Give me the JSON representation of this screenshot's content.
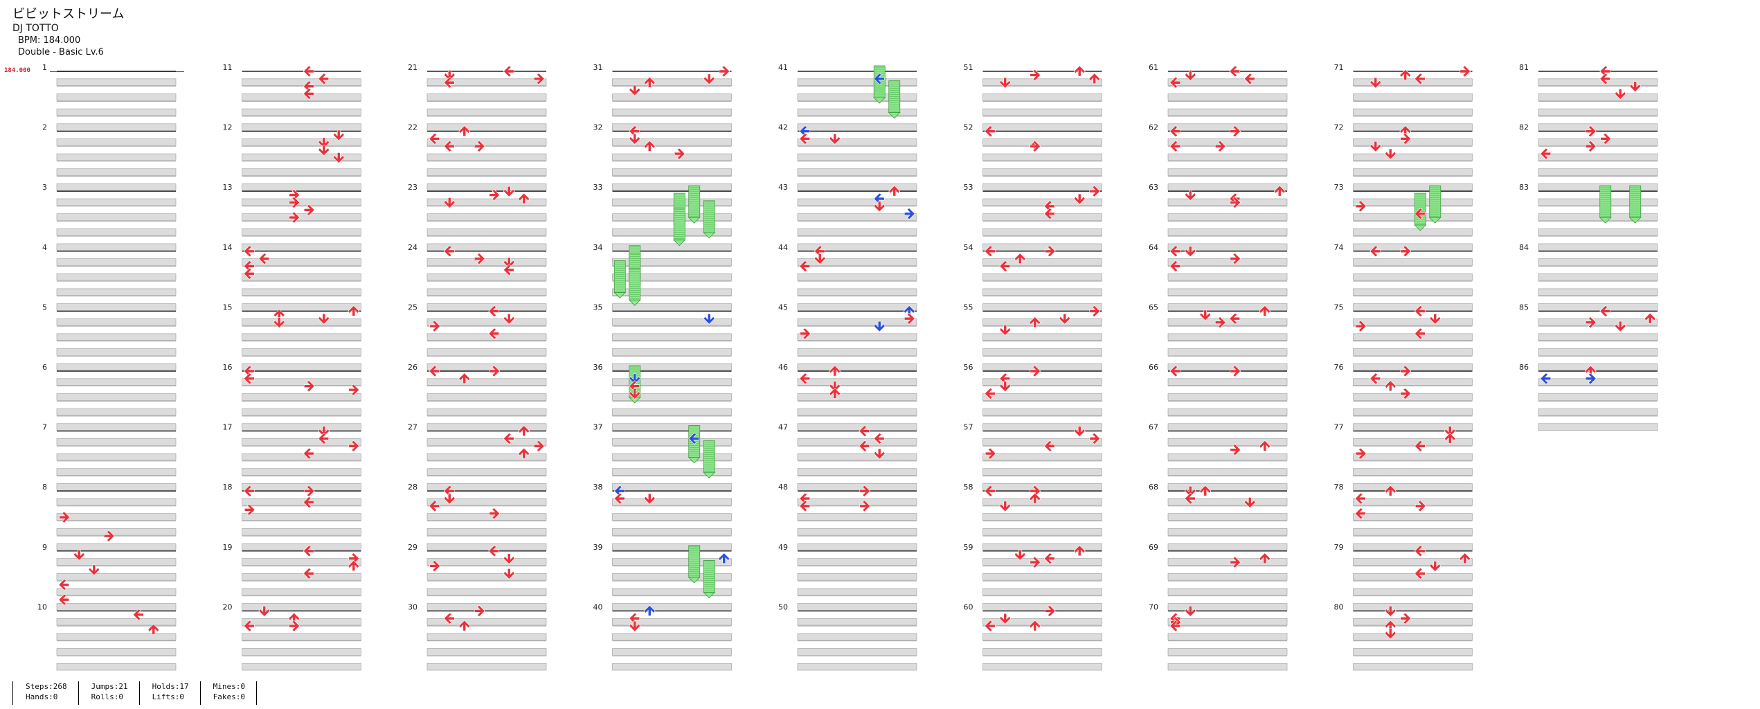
{
  "song": {
    "title": "ビビットストリーム",
    "artist": "DJ TOTTO",
    "bpm_text": "BPM: 184.000",
    "difficulty_text": "Double - Basic  Lv.6"
  },
  "bpm_marker": {
    "value": "184.000"
  },
  "measures": {
    "total": 86,
    "per_column": 10,
    "labels": [
      "1",
      "2",
      "3",
      "4",
      "5",
      "6",
      "7",
      "8",
      "9",
      "10",
      "11",
      "12",
      "13",
      "14",
      "15",
      "16",
      "17",
      "18",
      "19",
      "20",
      "21",
      "22",
      "23",
      "24",
      "25",
      "26",
      "27",
      "28",
      "29",
      "30",
      "31",
      "32",
      "33",
      "34",
      "35",
      "36",
      "37",
      "38",
      "39",
      "40",
      "41",
      "42",
      "43",
      "44",
      "45",
      "46",
      "47",
      "48",
      "49",
      "50",
      "51",
      "52",
      "53",
      "54",
      "55",
      "56",
      "57",
      "58",
      "59",
      "60",
      "61",
      "62",
      "63",
      "64",
      "65",
      "66",
      "67",
      "68",
      "69",
      "70",
      "71",
      "72",
      "73",
      "74",
      "75",
      "76",
      "77",
      "78",
      "79",
      "80",
      "81",
      "82",
      "83",
      "84",
      "85",
      "86"
    ]
  },
  "lanes": [
    "P1-left",
    "P1-down",
    "P1-up",
    "P1-right",
    "P2-left",
    "P2-down",
    "P2-up",
    "P2-right"
  ],
  "notes": [
    [
      8,
      7,
      "right",
      "red"
    ],
    [
      8,
      12,
      "right",
      "red"
    ],
    [
      9,
      1,
      "down",
      "red"
    ],
    [
      9,
      5,
      "down",
      "red"
    ],
    [
      9,
      9,
      "left",
      "red"
    ],
    [
      9,
      13,
      "left",
      "red"
    ],
    [
      10,
      1,
      "left",
      "red"
    ],
    [
      10,
      5,
      "up",
      "red"
    ],
    [
      11,
      0,
      "left",
      "red"
    ],
    [
      11,
      2,
      "left",
      "red"
    ],
    [
      11,
      4,
      "left",
      "red"
    ],
    [
      11,
      6,
      "left",
      "red"
    ],
    [
      12,
      1,
      "down",
      "red"
    ],
    [
      12,
      3,
      "down",
      "red"
    ],
    [
      12,
      5,
      "down",
      "red"
    ],
    [
      12,
      7,
      "down",
      "red"
    ],
    [
      13,
      1,
      "right",
      "red"
    ],
    [
      13,
      3,
      "right",
      "red"
    ],
    [
      13,
      5,
      "right",
      "red"
    ],
    [
      13,
      7,
      "right",
      "red"
    ],
    [
      14,
      0,
      "left",
      "red"
    ],
    [
      14,
      2,
      "left",
      "red"
    ],
    [
      14,
      4,
      "left",
      "red"
    ],
    [
      14,
      6,
      "left",
      "red"
    ],
    [
      15,
      0,
      "up",
      "red"
    ],
    [
      15,
      1,
      "up",
      "red"
    ],
    [
      15,
      2,
      "down",
      "red"
    ],
    [
      15,
      3,
      "down",
      "red"
    ],
    [
      16,
      0,
      "left",
      "red"
    ],
    [
      16,
      2,
      "left",
      "red"
    ],
    [
      16,
      4,
      "right",
      "red"
    ],
    [
      16,
      5,
      "right",
      "red"
    ],
    [
      17,
      0,
      "down",
      "red"
    ],
    [
      17,
      2,
      "left",
      "red"
    ],
    [
      17,
      4,
      "right",
      "red"
    ],
    [
      17,
      6,
      "left",
      "red"
    ],
    [
      18,
      0,
      "right",
      "red"
    ],
    [
      18,
      0,
      "left",
      "red"
    ],
    [
      18,
      3,
      "left",
      "red"
    ],
    [
      18,
      5,
      "right",
      "red"
    ],
    [
      19,
      0,
      "left",
      "red"
    ],
    [
      19,
      2,
      "right",
      "red"
    ],
    [
      19,
      4,
      "up",
      "red"
    ],
    [
      19,
      6,
      "left",
      "red"
    ],
    [
      20,
      0,
      "down",
      "red"
    ],
    [
      20,
      2,
      "up",
      "red"
    ],
    [
      20,
      4,
      "left",
      "red"
    ],
    [
      20,
      4,
      "right",
      "red"
    ],
    [
      21,
      0,
      "left",
      "red"
    ],
    [
      21,
      1,
      "down",
      "red"
    ],
    [
      21,
      2,
      "right",
      "red"
    ],
    [
      21,
      3,
      "left",
      "red"
    ],
    [
      22,
      0,
      "up",
      "red"
    ],
    [
      22,
      2,
      "left",
      "red"
    ],
    [
      22,
      4,
      "left",
      "red"
    ],
    [
      22,
      4,
      "right",
      "red"
    ],
    [
      23,
      0,
      "down",
      "red"
    ],
    [
      23,
      1,
      "right",
      "red"
    ],
    [
      23,
      2,
      "up",
      "red"
    ],
    [
      23,
      3,
      "down",
      "red"
    ],
    [
      24,
      0,
      "left",
      "red"
    ],
    [
      24,
      2,
      "right",
      "red"
    ],
    [
      24,
      3,
      "down",
      "red"
    ],
    [
      24,
      5,
      "left",
      "red"
    ],
    [
      25,
      0,
      "left",
      "red"
    ],
    [
      25,
      2,
      "down",
      "red"
    ],
    [
      25,
      4,
      "right",
      "red"
    ],
    [
      25,
      6,
      "left",
      "red"
    ],
    [
      26,
      0,
      "left",
      "red"
    ],
    [
      26,
      0,
      "right",
      "red"
    ],
    [
      26,
      2,
      "up",
      "red"
    ],
    [
      27,
      0,
      "up",
      "red"
    ],
    [
      27,
      2,
      "left",
      "red"
    ],
    [
      27,
      4,
      "right",
      "red"
    ],
    [
      27,
      6,
      "up",
      "red"
    ],
    [
      28,
      0,
      "left",
      "red"
    ],
    [
      28,
      2,
      "down",
      "red"
    ],
    [
      28,
      4,
      "left",
      "red"
    ],
    [
      28,
      6,
      "right",
      "red"
    ],
    [
      29,
      0,
      "left",
      "red"
    ],
    [
      29,
      2,
      "down",
      "red"
    ],
    [
      29,
      4,
      "right",
      "red"
    ],
    [
      29,
      6,
      "down",
      "red"
    ],
    [
      30,
      0,
      "right",
      "red"
    ],
    [
      30,
      2,
      "left",
      "red"
    ],
    [
      30,
      4,
      "up",
      "red"
    ],
    [
      31,
      0,
      "right",
      "red"
    ],
    [
      31,
      2,
      "down",
      "red"
    ],
    [
      31,
      3,
      "up",
      "red"
    ],
    [
      31,
      5,
      "down",
      "red"
    ],
    [
      32,
      0,
      "left",
      "red"
    ],
    [
      32,
      2,
      "down",
      "red"
    ],
    [
      32,
      4,
      "up",
      "red"
    ],
    [
      32,
      6,
      "right",
      "red"
    ],
    [
      33,
      0,
      "down",
      "green"
    ],
    [
      33,
      2,
      "left",
      "green"
    ],
    [
      33,
      4,
      "down",
      "green"
    ],
    [
      33,
      6,
      "left",
      "green"
    ],
    [
      34,
      0,
      "down",
      "green"
    ],
    [
      34,
      2,
      "left",
      "green"
    ],
    [
      34,
      4,
      "left",
      "green"
    ],
    [
      34,
      6,
      "down",
      "green"
    ],
    [
      35,
      2,
      "down",
      "blue"
    ],
    [
      36,
      0,
      "down",
      "green"
    ],
    [
      36,
      2,
      "down",
      "blue"
    ],
    [
      36,
      4,
      "left",
      "red"
    ],
    [
      36,
      6,
      "down",
      "red"
    ],
    [
      37,
      0,
      "down",
      "green"
    ],
    [
      37,
      2,
      "left",
      "blue"
    ],
    [
      37,
      4,
      "up",
      "green"
    ],
    [
      38,
      0,
      "left",
      "blue"
    ],
    [
      38,
      2,
      "down",
      "red"
    ],
    [
      38,
      2,
      "left",
      "red"
    ],
    [
      39,
      0,
      "down",
      "green"
    ],
    [
      39,
      2,
      "up",
      "blue"
    ],
    [
      39,
      4,
      "up",
      "green"
    ],
    [
      40,
      0,
      "up",
      "blue"
    ],
    [
      40,
      2,
      "left",
      "red"
    ],
    [
      40,
      4,
      "down",
      "red"
    ],
    [
      41,
      0,
      "down",
      "green"
    ],
    [
      41,
      2,
      "left",
      "blue"
    ],
    [
      41,
      4,
      "up",
      "green"
    ],
    [
      42,
      0,
      "left",
      "blue"
    ],
    [
      42,
      2,
      "down",
      "red"
    ],
    [
      42,
      2,
      "left",
      "red"
    ],
    [
      43,
      0,
      "up",
      "red"
    ],
    [
      43,
      2,
      "left",
      "blue"
    ],
    [
      43,
      4,
      "down",
      "red"
    ],
    [
      43,
      6,
      "right",
      "blue"
    ],
    [
      44,
      0,
      "left",
      "red"
    ],
    [
      44,
      2,
      "down",
      "red"
    ],
    [
      44,
      4,
      "left",
      "red"
    ],
    [
      45,
      0,
      "up",
      "blue"
    ],
    [
      45,
      2,
      "right",
      "red"
    ],
    [
      45,
      4,
      "down",
      "blue"
    ],
    [
      45,
      6,
      "right",
      "red"
    ],
    [
      46,
      0,
      "up",
      "red"
    ],
    [
      46,
      2,
      "left",
      "red"
    ],
    [
      46,
      4,
      "down",
      "red"
    ],
    [
      46,
      6,
      "up",
      "red"
    ],
    [
      47,
      0,
      "left",
      "red"
    ],
    [
      47,
      2,
      "left",
      "red"
    ],
    [
      47,
      4,
      "left",
      "red"
    ],
    [
      47,
      6,
      "down",
      "red"
    ],
    [
      48,
      0,
      "right",
      "red"
    ],
    [
      48,
      2,
      "left",
      "red"
    ],
    [
      48,
      4,
      "left",
      "red"
    ],
    [
      48,
      4,
      "right",
      "red"
    ],
    [
      51,
      0,
      "up",
      "red"
    ],
    [
      51,
      1,
      "right",
      "red"
    ],
    [
      51,
      2,
      "up",
      "red"
    ],
    [
      51,
      3,
      "down",
      "red"
    ],
    [
      52,
      0,
      "left",
      "red"
    ],
    [
      52,
      4,
      "up",
      "red"
    ],
    [
      52,
      4,
      "right",
      "red"
    ],
    [
      53,
      0,
      "right",
      "red"
    ],
    [
      53,
      2,
      "down",
      "red"
    ],
    [
      53,
      4,
      "left",
      "red"
    ],
    [
      53,
      6,
      "left",
      "red"
    ],
    [
      54,
      0,
      "right",
      "red"
    ],
    [
      54,
      0,
      "left",
      "red"
    ],
    [
      54,
      2,
      "up",
      "red"
    ],
    [
      54,
      4,
      "left",
      "red"
    ],
    [
      55,
      0,
      "right",
      "red"
    ],
    [
      55,
      2,
      "down",
      "red"
    ],
    [
      55,
      3,
      "up",
      "red"
    ],
    [
      55,
      5,
      "down",
      "red"
    ],
    [
      56,
      0,
      "right",
      "red"
    ],
    [
      56,
      2,
      "left",
      "red"
    ],
    [
      56,
      4,
      "down",
      "red"
    ],
    [
      56,
      6,
      "left",
      "red"
    ],
    [
      57,
      0,
      "down",
      "red"
    ],
    [
      57,
      2,
      "right",
      "red"
    ],
    [
      57,
      4,
      "left",
      "red"
    ],
    [
      57,
      6,
      "right",
      "red"
    ],
    [
      58,
      0,
      "right",
      "red"
    ],
    [
      58,
      0,
      "left",
      "red"
    ],
    [
      58,
      2,
      "up",
      "red"
    ],
    [
      58,
      4,
      "down",
      "red"
    ],
    [
      59,
      0,
      "up",
      "red"
    ],
    [
      59,
      1,
      "down",
      "red"
    ],
    [
      59,
      2,
      "left",
      "red"
    ],
    [
      59,
      3,
      "right",
      "red"
    ],
    [
      60,
      0,
      "right",
      "red"
    ],
    [
      60,
      2,
      "down",
      "red"
    ],
    [
      60,
      4,
      "left",
      "red"
    ],
    [
      60,
      4,
      "up",
      "red"
    ],
    [
      61,
      0,
      "left",
      "red"
    ],
    [
      61,
      1,
      "down",
      "red"
    ],
    [
      61,
      2,
      "left",
      "red"
    ],
    [
      61,
      3,
      "left",
      "red"
    ],
    [
      62,
      0,
      "left",
      "red"
    ],
    [
      62,
      0,
      "right",
      "red"
    ],
    [
      62,
      4,
      "right",
      "red"
    ],
    [
      62,
      4,
      "left",
      "red"
    ],
    [
      63,
      0,
      "up",
      "red"
    ],
    [
      63,
      1,
      "down",
      "red"
    ],
    [
      63,
      2,
      "left",
      "red"
    ],
    [
      63,
      3,
      "right",
      "red"
    ],
    [
      64,
      0,
      "left",
      "red"
    ],
    [
      64,
      0,
      "down",
      "red"
    ],
    [
      64,
      2,
      "right",
      "red"
    ],
    [
      64,
      4,
      "left",
      "red"
    ],
    [
      65,
      0,
      "up",
      "red"
    ],
    [
      65,
      1,
      "down",
      "red"
    ],
    [
      65,
      2,
      "left",
      "red"
    ],
    [
      65,
      3,
      "right",
      "red"
    ],
    [
      66,
      0,
      "right",
      "red"
    ],
    [
      66,
      0,
      "left",
      "red"
    ],
    [
      67,
      4,
      "up",
      "red"
    ],
    [
      67,
      5,
      "right",
      "red"
    ],
    [
      68,
      0,
      "down",
      "red"
    ],
    [
      68,
      0,
      "up",
      "red"
    ],
    [
      68,
      2,
      "left",
      "red"
    ],
    [
      68,
      3,
      "down",
      "red"
    ],
    [
      69,
      2,
      "up",
      "red"
    ],
    [
      69,
      3,
      "right",
      "red"
    ],
    [
      70,
      0,
      "down",
      "red"
    ],
    [
      70,
      2,
      "left",
      "red"
    ],
    [
      70,
      3,
      "right",
      "red"
    ],
    [
      70,
      4,
      "left",
      "red"
    ],
    [
      71,
      0,
      "right",
      "red"
    ],
    [
      71,
      1,
      "up",
      "red"
    ],
    [
      71,
      2,
      "left",
      "red"
    ],
    [
      71,
      3,
      "down",
      "red"
    ],
    [
      72,
      0,
      "up",
      "red"
    ],
    [
      72,
      2,
      "right",
      "red"
    ],
    [
      72,
      4,
      "down",
      "red"
    ],
    [
      72,
      6,
      "down",
      "red"
    ],
    [
      73,
      0,
      "down",
      "green"
    ],
    [
      73,
      2,
      "left",
      "green"
    ],
    [
      73,
      4,
      "right",
      "red"
    ],
    [
      73,
      6,
      "left",
      "red"
    ],
    [
      74,
      0,
      "right",
      "red"
    ],
    [
      74,
      0,
      "left",
      "red"
    ],
    [
      75,
      0,
      "left",
      "red"
    ],
    [
      75,
      2,
      "down",
      "red"
    ],
    [
      75,
      4,
      "right",
      "red"
    ],
    [
      75,
      6,
      "left",
      "red"
    ],
    [
      76,
      0,
      "right",
      "red"
    ],
    [
      76,
      2,
      "left",
      "red"
    ],
    [
      76,
      4,
      "up",
      "red"
    ],
    [
      76,
      6,
      "right",
      "red"
    ],
    [
      77,
      0,
      "down",
      "red"
    ],
    [
      77,
      2,
      "up",
      "red"
    ],
    [
      77,
      4,
      "left",
      "red"
    ],
    [
      77,
      6,
      "right",
      "red"
    ],
    [
      78,
      0,
      "up",
      "red"
    ],
    [
      78,
      2,
      "left",
      "red"
    ],
    [
      78,
      4,
      "right",
      "red"
    ],
    [
      78,
      6,
      "left",
      "red"
    ],
    [
      79,
      0,
      "left",
      "red"
    ],
    [
      79,
      2,
      "up",
      "red"
    ],
    [
      79,
      4,
      "down",
      "red"
    ],
    [
      79,
      6,
      "left",
      "red"
    ],
    [
      80,
      0,
      "down",
      "red"
    ],
    [
      80,
      2,
      "right",
      "red"
    ],
    [
      80,
      4,
      "up",
      "red"
    ],
    [
      80,
      6,
      "down",
      "red"
    ],
    [
      81,
      0,
      "left",
      "red"
    ],
    [
      81,
      2,
      "left",
      "red"
    ],
    [
      81,
      4,
      "down",
      "red"
    ],
    [
      81,
      6,
      "down",
      "red"
    ],
    [
      82,
      0,
      "right",
      "red"
    ],
    [
      82,
      2,
      "right",
      "red"
    ],
    [
      82,
      4,
      "right",
      "red"
    ],
    [
      82,
      6,
      "left",
      "red"
    ],
    [
      83,
      0,
      "down",
      "green"
    ],
    [
      83,
      0,
      "left",
      "green"
    ],
    [
      85,
      0,
      "left",
      "red"
    ],
    [
      85,
      2,
      "up",
      "red"
    ],
    [
      85,
      3,
      "right",
      "red"
    ],
    [
      85,
      4,
      "down",
      "red"
    ],
    [
      86,
      0,
      "up",
      "red"
    ],
    [
      86,
      2,
      "left",
      "blue"
    ],
    [
      86,
      2,
      "right",
      "blue"
    ]
  ],
  "stats": [
    {
      "label1": "Steps:268",
      "label2": "Hands:0"
    },
    {
      "label1": "Jumps:21",
      "label2": "Rolls:0"
    },
    {
      "label1": "Holds:17",
      "label2": "Lifts:0"
    },
    {
      "label1": "Mines:0",
      "label2": "Fakes:0"
    }
  ],
  "colors": {
    "red": "#e8323c",
    "blue": "#2a4fe0",
    "green": "#8fe68f",
    "band": "#dcdcdc"
  }
}
